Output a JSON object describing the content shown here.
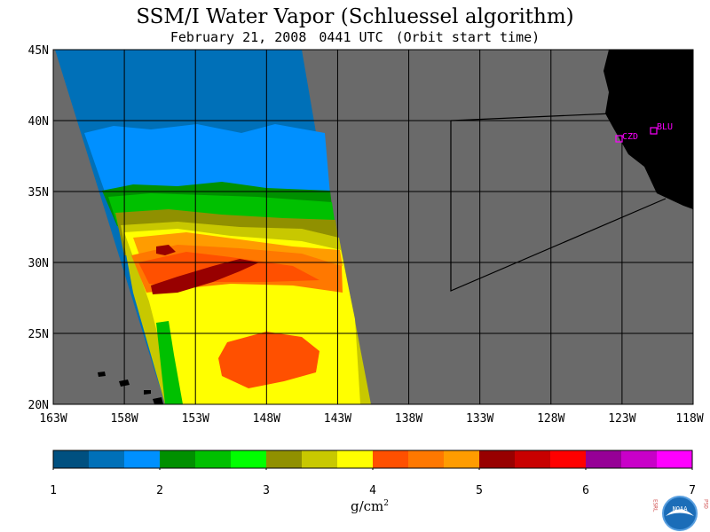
{
  "title": "SSM/I Water Vapor (Schluessel algorithm)",
  "subtitle": {
    "date": "February 21, 2008",
    "time": "0441 UTC",
    "note": "(Orbit start time)"
  },
  "map": {
    "lat_labels": [
      "45N",
      "40N",
      "35N",
      "30N",
      "25N",
      "20N"
    ],
    "lon_labels": [
      "163W",
      "158W",
      "153W",
      "148W",
      "143W",
      "138W",
      "133W",
      "128W",
      "123W",
      "118W"
    ],
    "stations": [
      {
        "label": "BLU"
      },
      {
        "label": "CZD"
      }
    ],
    "colors": {
      "land": "#000000",
      "no_data": "#6a6a6a",
      "grid": "#000000",
      "station": "#ff00ff"
    }
  },
  "colorbar": {
    "colors": [
      "#005080",
      "#0070b8",
      "#0090ff",
      "#009000",
      "#00c000",
      "#00ff00",
      "#909000",
      "#c8c800",
      "#ffff00",
      "#ff5000",
      "#ff7800",
      "#ff9c00",
      "#980000",
      "#c80000",
      "#ff0000",
      "#960096",
      "#c800c8",
      "#ff00ff"
    ],
    "ticks": [
      "1",
      "2",
      "3",
      "4",
      "5",
      "6",
      "7"
    ],
    "unit": "g/cm",
    "unit_exp": "2"
  },
  "logo": {
    "left": "ESRL",
    "right": "PSD",
    "center": "NOAA"
  }
}
